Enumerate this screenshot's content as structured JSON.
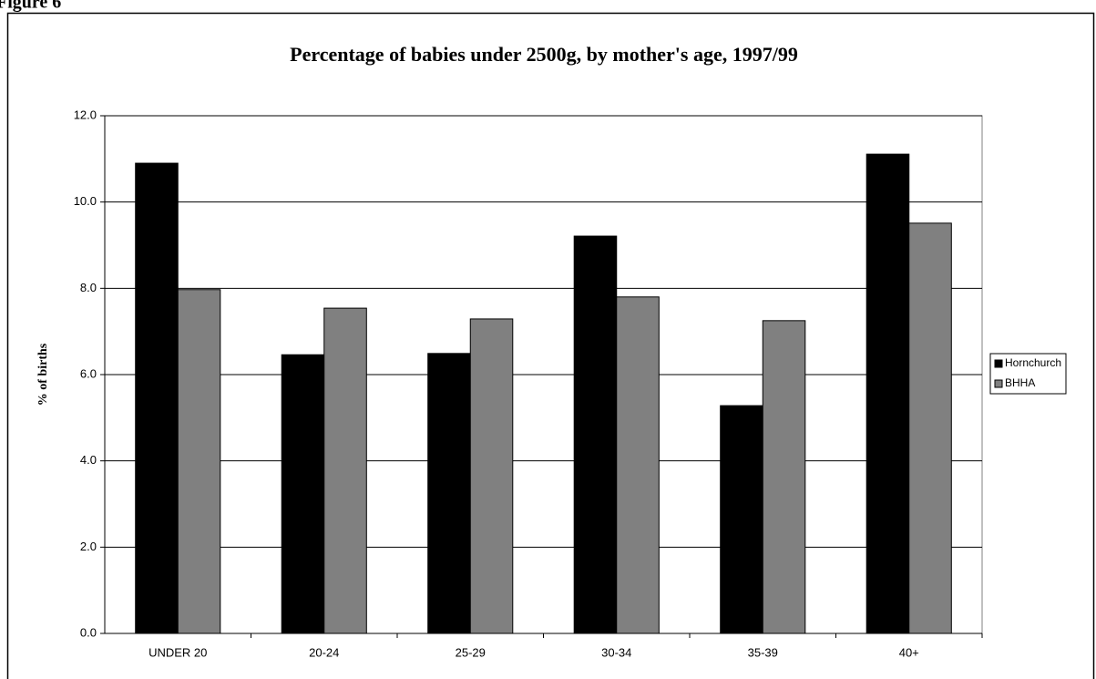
{
  "figure_label": "Figure 6",
  "chart_data": {
    "type": "bar",
    "title": "Percentage of babies under 2500g, by mother's age, 1997/99",
    "y_label": "% of births",
    "categories": [
      "UNDER 20",
      "20-24",
      "25-29",
      "30-34",
      "35-39",
      "40+"
    ],
    "series": [
      {
        "name": "Hornchurch",
        "color": "#000000",
        "values": [
          10.9,
          6.46,
          6.49,
          9.21,
          5.28,
          11.11
        ]
      },
      {
        "name": "BHHA",
        "color": "#808080",
        "values": [
          7.97,
          7.54,
          7.29,
          7.8,
          7.25,
          9.51
        ]
      }
    ],
    "ylim": [
      0,
      12
    ],
    "yticks": [
      {
        "value": 0,
        "label": "0.0"
      },
      {
        "value": 2,
        "label": "2.0"
      },
      {
        "value": 4,
        "label": "4.0"
      },
      {
        "value": 6,
        "label": "6.0"
      },
      {
        "value": 8,
        "label": "8.0"
      },
      {
        "value": 10,
        "label": "10.0"
      },
      {
        "value": 12,
        "label": "12.0"
      }
    ],
    "grid": true,
    "legend": "right"
  }
}
